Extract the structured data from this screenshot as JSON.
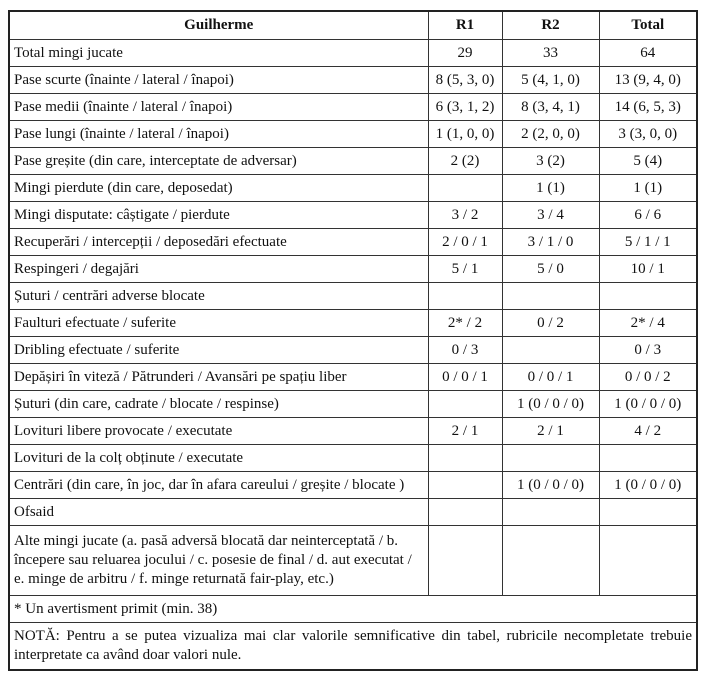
{
  "table": {
    "header": [
      "Guilherme",
      "R1",
      "R2",
      "Total"
    ],
    "rows": [
      [
        "Total mingi jucate",
        "29",
        "33",
        "64"
      ],
      [
        "Pase scurte (înainte / lateral / înapoi)",
        "8 (5, 3, 0)",
        "5 (4, 1, 0)",
        "13 (9, 4, 0)"
      ],
      [
        "Pase medii (înainte / lateral / înapoi)",
        "6 (3, 1, 2)",
        "8 (3, 4, 1)",
        "14 (6, 5, 3)"
      ],
      [
        "Pase lungi (înainte / lateral / înapoi)",
        "1 (1, 0, 0)",
        "2 (2, 0, 0)",
        "3 (3, 0, 0)"
      ],
      [
        "Pase greșite (din care, interceptate de adversar)",
        "2 (2)",
        "3 (2)",
        "5 (4)"
      ],
      [
        "Mingi pierdute (din care, deposedat)",
        null,
        "1 (1)",
        "1 (1)"
      ],
      [
        "Mingi disputate: câștigate / pierdute",
        "3 / 2",
        "3 / 4",
        "6 / 6"
      ],
      [
        "Recuperări / intercepții / deposedări efectuate",
        "2 / 0 / 1",
        "3 / 1 / 0",
        "5 / 1 / 1"
      ],
      [
        "Respingeri / degajări",
        "5 / 1",
        "5 / 0",
        "10 / 1"
      ],
      [
        "Șuturi / centrări adverse blocate",
        null,
        null,
        null
      ],
      [
        "Faulturi efectuate / suferite",
        "2* / 2",
        "0 / 2",
        "2* / 4"
      ],
      [
        "Dribling efectuate / suferite",
        "0 / 3",
        null,
        "0 / 3"
      ],
      [
        "Depășiri în viteză / Pătrunderi / Avansări pe spațiu liber",
        "0 / 0 / 1",
        "0 / 0 / 1",
        "0 / 0 / 2"
      ],
      [
        "Șuturi (din care, cadrate / blocate / respinse)",
        null,
        "1 (0 / 0 / 0)",
        "1 (0 / 0 / 0)"
      ],
      [
        "Lovituri libere provocate / executate",
        "2 / 1",
        "2 / 1",
        "4 / 2"
      ],
      [
        "Lovituri de la colț obținute / executate",
        null,
        null,
        null
      ],
      [
        "Centrări (din care, în joc, dar în afara careului / greșite / blocate )",
        null,
        "1 (0 / 0 / 0)",
        "1 (0 / 0 / 0)"
      ],
      [
        "Ofsaid",
        null,
        null,
        null
      ],
      [
        "Alte mingi jucate (a. pasă adversă blocată dar neinterceptată / b. începere sau reluarea jocului / c. posesie de final / d. aut executat / e. minge de arbitru / f. minge returnată fair-play, etc.)",
        null,
        null,
        null
      ]
    ],
    "footnote": "* Un avertisment primit (min. 38)",
    "note": "NOTĂ: Pentru a se putea vizualiza mai clar valorile semnificative din tabel, rubricile necompletate trebuie interpretate ca având doar valori nule."
  }
}
